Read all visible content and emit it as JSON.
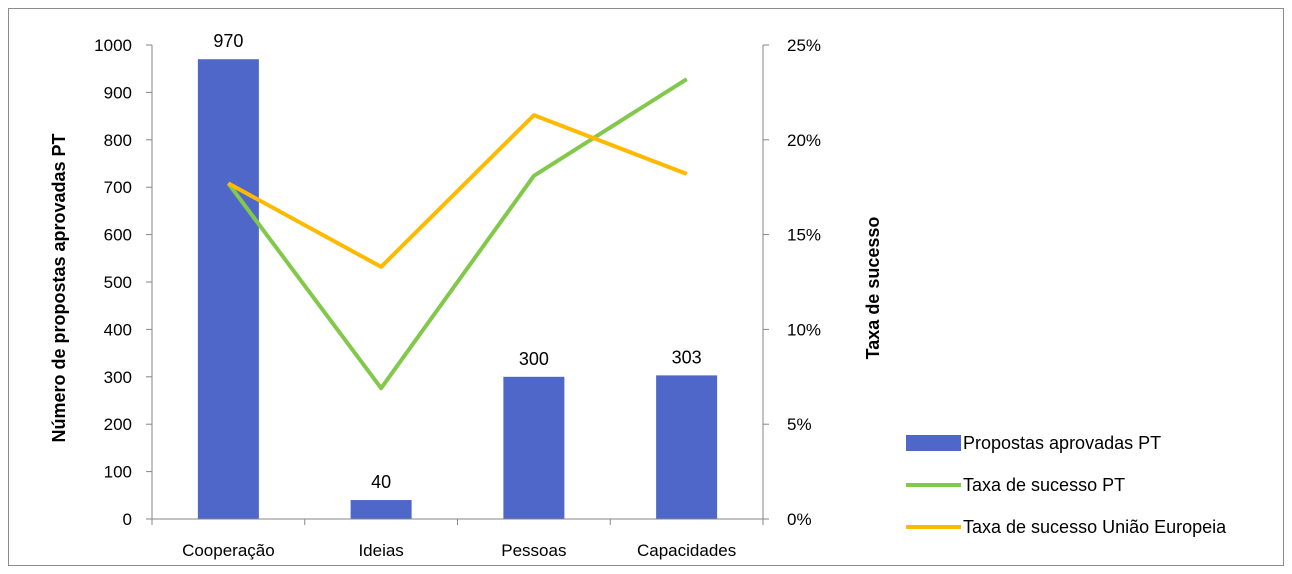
{
  "chart_data": {
    "type": "bar",
    "categories": [
      "Cooperação",
      "Ideias",
      "Pessoas",
      "Capacidades"
    ],
    "series": [
      {
        "name": "Propostas aprovadas PT",
        "type": "bar",
        "axis": "left",
        "color": "#4f67c9",
        "values": [
          970,
          40,
          300,
          303
        ]
      },
      {
        "name": "Taxa de sucesso PT",
        "type": "line",
        "axis": "right",
        "color": "#82c84a",
        "values": [
          0.177,
          0.069,
          0.181,
          0.232
        ]
      },
      {
        "name": "Taxa de sucesso União Europeia",
        "type": "line",
        "axis": "right",
        "color": "#ffba00",
        "values": [
          0.177,
          0.133,
          0.213,
          0.182
        ]
      }
    ],
    "data_labels": [
      "970",
      "40",
      "300",
      "303"
    ],
    "ylabel": "Número de propostas aprovadas PT",
    "y2label": "Taxa de sucesso",
    "ylim": [
      0,
      1000
    ],
    "yticks": [
      "0",
      "100",
      "200",
      "300",
      "400",
      "500",
      "600",
      "700",
      "800",
      "900",
      "1000"
    ],
    "y2lim": [
      0,
      0.25
    ],
    "y2ticks": [
      "0%",
      "5%",
      "10%",
      "15%",
      "20%",
      "25%"
    ],
    "grid": false,
    "legend_position": "right"
  }
}
